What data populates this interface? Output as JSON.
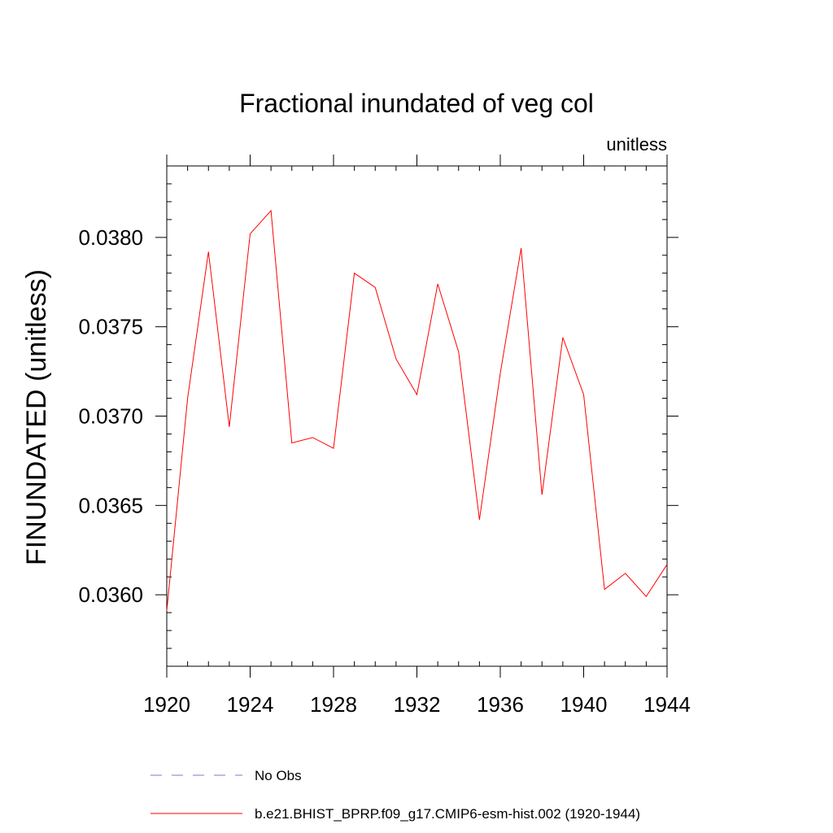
{
  "chart_data": {
    "type": "line",
    "title": "Fractional inundated of veg col",
    "units_label": "unitless",
    "xlabel": "",
    "ylabel": "FINUNDATED  (unitless)",
    "xlim": [
      1920,
      1944
    ],
    "ylim": [
      0.0356,
      0.0384
    ],
    "x_ticks": [
      1920,
      1924,
      1928,
      1932,
      1936,
      1940,
      1944
    ],
    "x_tick_labels": [
      "1920",
      "1924",
      "1928",
      "1932",
      "1936",
      "1940",
      "1944"
    ],
    "y_ticks": [
      0.036,
      0.0365,
      0.037,
      0.0375,
      0.038
    ],
    "y_tick_labels": [
      "0.0360",
      "0.0365",
      "0.0370",
      "0.0375",
      "0.0380"
    ],
    "grid": false,
    "series": [
      {
        "name": "b.e21.BHIST_BPRP.f09_g17.CMIP6-esm-hist.002 (1920-1944)",
        "color": "#ff0000",
        "dash": "solid",
        "x": [
          1920,
          1921,
          1922,
          1923,
          1924,
          1925,
          1926,
          1927,
          1928,
          1929,
          1930,
          1931,
          1932,
          1933,
          1934,
          1935,
          1936,
          1937,
          1938,
          1939,
          1940,
          1941,
          1942,
          1943,
          1944
        ],
        "y": [
          0.03591,
          0.0371,
          0.03792,
          0.03694,
          0.03802,
          0.03815,
          0.03685,
          0.03688,
          0.03682,
          0.0378,
          0.03772,
          0.03732,
          0.03712,
          0.03774,
          0.03736,
          0.03642,
          0.03724,
          0.03794,
          0.03656,
          0.03744,
          0.03712,
          0.03603,
          0.03612,
          0.03599,
          0.03617
        ]
      }
    ],
    "legend": [
      {
        "label": "No Obs",
        "color": "#7a7acc",
        "dash": "dashed"
      },
      {
        "label": "b.e21.BHIST_BPRP.f09_g17.CMIP6-esm-hist.002 (1920-1944)",
        "color": "#ff0000",
        "dash": "solid"
      }
    ],
    "legend_position": "bottom"
  }
}
